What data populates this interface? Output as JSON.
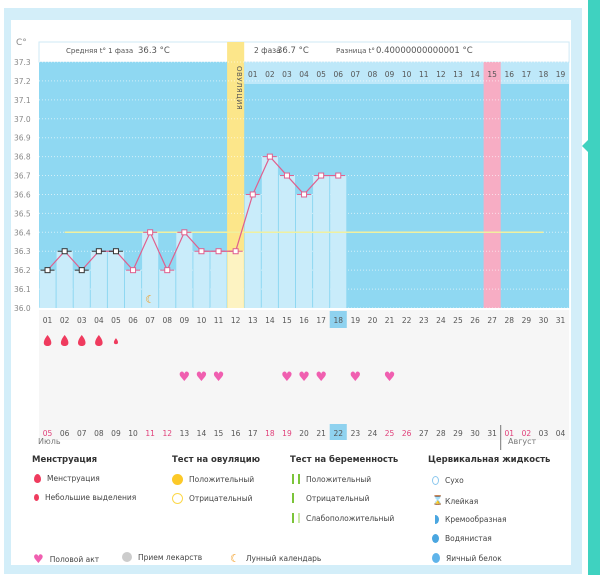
{
  "header": {
    "unit": "C°",
    "phase1_label": "Средняя t° 1 фаза",
    "phase1_value": "36.3 °C",
    "phase2_label": "2 фаза",
    "phase2_value": "36.7 °C",
    "diff_label": "Разница t°",
    "diff_value": "0.40000000000001 °C",
    "ovulation_label": "ОВУЛЯЦИЯ"
  },
  "chart_data": {
    "type": "line",
    "y_ticks": [
      "37.3",
      "37.2",
      "37.1",
      "37.0",
      "36.9",
      "36.8",
      "36.7",
      "36.6",
      "36.5",
      "36.4",
      "36.3",
      "36.2",
      "36.1",
      "36.0"
    ],
    "ylim": [
      36.0,
      37.3
    ],
    "cycle_days": [
      "01",
      "02",
      "03",
      "04",
      "05",
      "06",
      "07",
      "08",
      "09",
      "10",
      "11",
      "12",
      "13",
      "14",
      "15",
      "16",
      "17",
      "18",
      "19",
      "20",
      "21",
      "22",
      "23",
      "24",
      "25",
      "26",
      "27",
      "28",
      "29",
      "30",
      "31"
    ],
    "temperatures": [
      36.2,
      36.3,
      36.2,
      36.3,
      36.3,
      36.2,
      36.4,
      36.2,
      36.4,
      36.3,
      36.3,
      36.3,
      36.6,
      36.8,
      36.7,
      36.6,
      36.7,
      36.7
    ],
    "menstruation_marker_days": 5,
    "coverline": 36.4,
    "ovulation_day": 12,
    "current_day": 18,
    "expected_period_day": 27,
    "luteal_days": [
      "01",
      "02",
      "03",
      "04",
      "05",
      "06",
      "07",
      "08",
      "09",
      "10",
      "11",
      "12",
      "13",
      "14",
      "15",
      "16",
      "17",
      "18",
      "19"
    ],
    "moon_day": 7,
    "menstruation": [
      {
        "day": 1,
        "type": "heavy"
      },
      {
        "day": 2,
        "type": "heavy"
      },
      {
        "day": 3,
        "type": "heavy"
      },
      {
        "day": 4,
        "type": "heavy"
      },
      {
        "day": 5,
        "type": "light"
      }
    ],
    "intercourse_days": [
      9,
      10,
      11,
      15,
      16,
      17,
      19,
      21
    ],
    "dates": [
      "05",
      "06",
      "07",
      "08",
      "09",
      "10",
      "11",
      "12",
      "13",
      "14",
      "15",
      "16",
      "17",
      "18",
      "19",
      "20",
      "21",
      "22",
      "23",
      "24",
      "25",
      "26",
      "27",
      "28",
      "29",
      "30",
      "31",
      "01",
      "02",
      "03",
      "04"
    ],
    "weekend_dates": [
      0,
      6,
      7,
      13,
      14,
      20,
      21,
      27,
      28
    ],
    "month1": "Июль",
    "month2": "Август"
  },
  "colors": {
    "plot": "#8fd8f2",
    "bar": "#c9ecfa",
    "ovulation": "#fce68a",
    "period": "#f7adc4",
    "line": "#e0608e",
    "accent": "#ef3b5e"
  },
  "legend": {
    "menstruation": {
      "title": "Менструация",
      "items": [
        "Менструация",
        "Небольшие выделения"
      ]
    },
    "ovulation_test": {
      "title": "Тест на овуляцию",
      "items": [
        "Положительный",
        "Отрицательный"
      ]
    },
    "pregnancy_test": {
      "title": "Тест на беременность",
      "items": [
        "Положительный",
        "Отрицательный",
        "Слабоположительный"
      ]
    },
    "cervical": {
      "title": "Цервикальная жидкость",
      "items": [
        "Сухо",
        "Клейкая",
        "Кремообразная",
        "Водянистая",
        "Яичный белок"
      ]
    },
    "other": [
      "Половой акт",
      "Прием лекарств",
      "Лунный календарь"
    ]
  }
}
